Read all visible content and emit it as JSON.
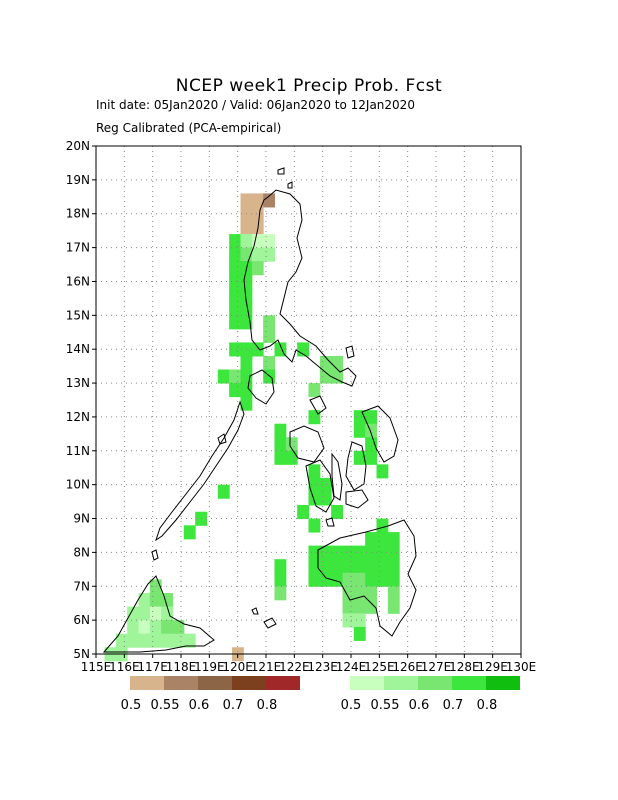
{
  "title": "NCEP week1 Precip Prob. Fcst",
  "subtitle_dates": "Init date: 05Jan2020 / Valid: 06Jan2020 to 12Jan2020",
  "subtitle_method": "Reg Calibrated (PCA-empirical)",
  "axes": {
    "lon_labels": [
      "115E",
      "116E",
      "117E",
      "118E",
      "119E",
      "120E",
      "121E",
      "122E",
      "123E",
      "124E",
      "125E",
      "126E",
      "127E",
      "128E",
      "129E",
      "130E"
    ],
    "lat_labels": [
      "5N",
      "6N",
      "7N",
      "8N",
      "9N",
      "10N",
      "11N",
      "12N",
      "13N",
      "14N",
      "15N",
      "16N",
      "17N",
      "18N",
      "19N",
      "20N"
    ],
    "lon_range": [
      115,
      130
    ],
    "lat_range": [
      5,
      20
    ],
    "grid": "dotted"
  },
  "legend_dry": {
    "colors": [
      "#d7b48c",
      "#aa8366",
      "#8c6446",
      "#7d401e",
      "#a02828"
    ],
    "labels": [
      "0.5",
      "0.55",
      "0.6",
      "0.7",
      "0.8"
    ]
  },
  "legend_wet": {
    "colors": [
      "#c8ffbe",
      "#a0f59a",
      "#78e670",
      "#3ce63c",
      "#10be10"
    ],
    "labels": [
      "0.5",
      "0.55",
      "0.6",
      "0.7",
      "0.8"
    ]
  },
  "chart_data": {
    "type": "heatmap",
    "title": "NCEP week1 Precip Prob. Fcst",
    "cell_size_deg": 0.4,
    "levels": [
      "dry 0.5",
      "dry 0.55",
      "wet 0.5",
      "wet 0.55",
      "wet 0.6",
      "wet 0.7",
      "wet 0.8"
    ],
    "cells": [
      [
        120.3,
        18.4,
        "d1"
      ],
      [
        120.7,
        18.4,
        "d1"
      ],
      [
        121.1,
        18.4,
        "d2"
      ],
      [
        120.3,
        18.0,
        "d1"
      ],
      [
        120.7,
        18.0,
        "d1"
      ],
      [
        120.3,
        17.6,
        "d1"
      ],
      [
        120.7,
        17.6,
        "d1"
      ],
      [
        119.9,
        17.2,
        "g4"
      ],
      [
        120.3,
        17.2,
        "g2"
      ],
      [
        120.7,
        17.2,
        "g1"
      ],
      [
        121.1,
        17.2,
        "g1"
      ],
      [
        119.9,
        16.8,
        "g4"
      ],
      [
        120.3,
        16.8,
        "g3"
      ],
      [
        120.7,
        16.8,
        "g2"
      ],
      [
        121.1,
        16.8,
        "g2"
      ],
      [
        119.9,
        16.4,
        "g4"
      ],
      [
        120.3,
        16.4,
        "g4"
      ],
      [
        120.7,
        16.4,
        "g3"
      ],
      [
        119.9,
        16.0,
        "g4"
      ],
      [
        120.3,
        16.0,
        "g4"
      ],
      [
        119.9,
        15.6,
        "g4"
      ],
      [
        120.3,
        15.6,
        "g4"
      ],
      [
        119.9,
        15.2,
        "g4"
      ],
      [
        120.3,
        15.2,
        "g4"
      ],
      [
        119.9,
        14.8,
        "g4"
      ],
      [
        120.3,
        14.8,
        "g4"
      ],
      [
        121.1,
        14.8,
        "g3"
      ],
      [
        121.1,
        14.4,
        "g3"
      ],
      [
        119.9,
        14.0,
        "g4"
      ],
      [
        120.3,
        14.0,
        "g4"
      ],
      [
        120.7,
        14.0,
        "g4"
      ],
      [
        121.5,
        14.0,
        "g4"
      ],
      [
        122.3,
        14.0,
        "g4"
      ],
      [
        120.3,
        13.6,
        "g4"
      ],
      [
        121.1,
        13.6,
        "g3"
      ],
      [
        123.1,
        13.6,
        "g3"
      ],
      [
        123.5,
        13.6,
        "g3"
      ],
      [
        119.5,
        13.2,
        "g4"
      ],
      [
        119.9,
        13.2,
        "g3"
      ],
      [
        120.3,
        13.2,
        "g4"
      ],
      [
        121.1,
        13.2,
        "g4"
      ],
      [
        123.1,
        13.2,
        "g3"
      ],
      [
        123.5,
        13.2,
        "g3"
      ],
      [
        119.9,
        12.8,
        "g4"
      ],
      [
        120.3,
        12.8,
        "g4"
      ],
      [
        122.7,
        12.8,
        "g3"
      ],
      [
        120.3,
        12.4,
        "g4"
      ],
      [
        122.7,
        12.0,
        "g4"
      ],
      [
        124.3,
        12.0,
        "g4"
      ],
      [
        124.7,
        12.0,
        "g4"
      ],
      [
        121.5,
        11.6,
        "g4"
      ],
      [
        124.3,
        11.6,
        "g4"
      ],
      [
        124.7,
        11.6,
        "g3"
      ],
      [
        121.5,
        11.2,
        "g4"
      ],
      [
        121.9,
        11.2,
        "g3"
      ],
      [
        124.7,
        11.2,
        "g4"
      ],
      [
        121.5,
        10.8,
        "g4"
      ],
      [
        121.9,
        10.8,
        "g4"
      ],
      [
        124.3,
        10.8,
        "g4"
      ],
      [
        124.7,
        10.8,
        "g4"
      ],
      [
        122.7,
        10.4,
        "g4"
      ],
      [
        125.1,
        10.4,
        "g4"
      ],
      [
        122.7,
        10.0,
        "g4"
      ],
      [
        123.1,
        10.0,
        "g4"
      ],
      [
        122.7,
        9.6,
        "g4"
      ],
      [
        123.1,
        9.6,
        "g4"
      ],
      [
        122.3,
        9.2,
        "g4"
      ],
      [
        123.5,
        9.2,
        "g4"
      ],
      [
        122.7,
        8.8,
        "g4"
      ],
      [
        125.1,
        8.8,
        "g4"
      ],
      [
        124.7,
        8.4,
        "g4"
      ],
      [
        125.1,
        8.4,
        "g4"
      ],
      [
        125.5,
        8.4,
        "g4"
      ],
      [
        122.7,
        8.0,
        "g4"
      ],
      [
        123.1,
        8.0,
        "g4"
      ],
      [
        123.5,
        8.0,
        "g4"
      ],
      [
        123.9,
        8.0,
        "g4"
      ],
      [
        124.3,
        8.0,
        "g4"
      ],
      [
        124.7,
        8.0,
        "g4"
      ],
      [
        125.1,
        8.0,
        "g4"
      ],
      [
        125.5,
        8.0,
        "g4"
      ],
      [
        121.5,
        7.6,
        "g4"
      ],
      [
        122.7,
        7.6,
        "g4"
      ],
      [
        123.1,
        7.6,
        "g4"
      ],
      [
        123.5,
        7.6,
        "g4"
      ],
      [
        123.9,
        7.6,
        "g4"
      ],
      [
        124.3,
        7.6,
        "g4"
      ],
      [
        124.7,
        7.6,
        "g4"
      ],
      [
        125.1,
        7.6,
        "g4"
      ],
      [
        125.5,
        7.6,
        "g4"
      ],
      [
        121.5,
        7.2,
        "g4"
      ],
      [
        122.7,
        7.2,
        "g4"
      ],
      [
        123.1,
        7.2,
        "g4"
      ],
      [
        123.5,
        7.2,
        "g4"
      ],
      [
        123.9,
        7.2,
        "g3"
      ],
      [
        124.3,
        7.2,
        "g3"
      ],
      [
        124.7,
        7.2,
        "g4"
      ],
      [
        125.1,
        7.2,
        "g4"
      ],
      [
        125.5,
        7.2,
        "g4"
      ],
      [
        121.5,
        6.8,
        "g3"
      ],
      [
        123.9,
        6.8,
        "g3"
      ],
      [
        124.3,
        6.8,
        "g3"
      ],
      [
        124.7,
        6.8,
        "g3"
      ],
      [
        125.5,
        6.8,
        "g3"
      ],
      [
        123.9,
        6.4,
        "g3"
      ],
      [
        124.3,
        6.4,
        "g3"
      ],
      [
        124.7,
        6.4,
        "g3"
      ],
      [
        125.5,
        6.4,
        "g3"
      ],
      [
        123.9,
        6.0,
        "g2"
      ],
      [
        124.3,
        6.0,
        "g2"
      ],
      [
        124.3,
        5.6,
        "g4"
      ],
      [
        117.1,
        7.0,
        "g3"
      ],
      [
        116.7,
        6.6,
        "g2"
      ],
      [
        117.1,
        6.6,
        "g3"
      ],
      [
        117.5,
        6.6,
        "g3"
      ],
      [
        116.3,
        6.2,
        "g2"
      ],
      [
        116.7,
        6.2,
        "g2"
      ],
      [
        117.1,
        6.2,
        "g1"
      ],
      [
        117.5,
        6.2,
        "g2"
      ],
      [
        116.3,
        5.8,
        "g2"
      ],
      [
        116.7,
        5.8,
        "g1"
      ],
      [
        117.1,
        5.8,
        "g2"
      ],
      [
        117.5,
        5.8,
        "g3"
      ],
      [
        117.9,
        5.8,
        "g3"
      ],
      [
        115.9,
        5.4,
        "g2"
      ],
      [
        116.3,
        5.4,
        "g2"
      ],
      [
        116.7,
        5.4,
        "g2"
      ],
      [
        117.1,
        5.4,
        "g2"
      ],
      [
        117.5,
        5.4,
        "g2"
      ],
      [
        117.9,
        5.4,
        "g2"
      ],
      [
        118.3,
        5.4,
        "g2"
      ],
      [
        115.5,
        5.0,
        "g2"
      ],
      [
        115.9,
        5.0,
        "g2"
      ],
      [
        118.7,
        9.0,
        "g4"
      ],
      [
        118.3,
        8.6,
        "g4"
      ],
      [
        119.5,
        9.8,
        "g4"
      ],
      [
        120.0,
        5.0,
        "d1"
      ]
    ]
  }
}
